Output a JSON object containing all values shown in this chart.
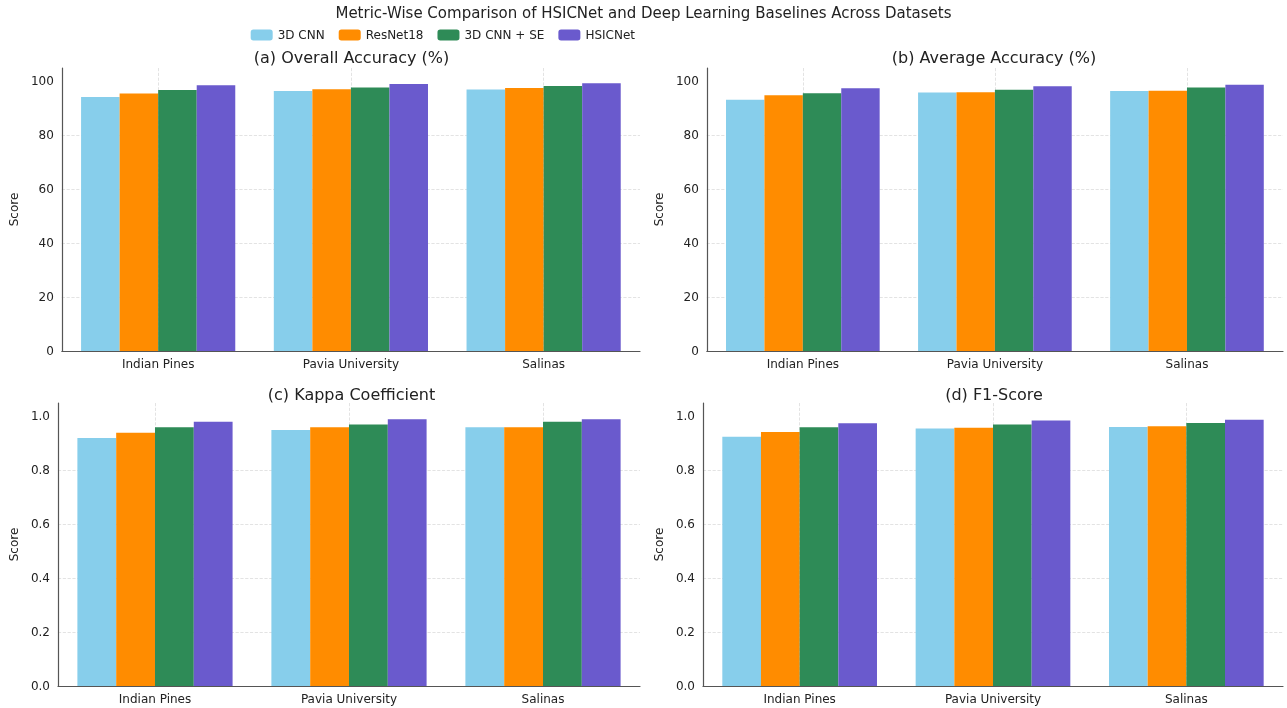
{
  "chart_data": [
    {
      "type": "bar",
      "title": "(a) Overall Accuracy (%)",
      "annotations": [
        "Metric-Wise Comparison of HSICNet and Deep Learning Baselines Across Datasets"
      ],
      "ylabel": "Score",
      "categories": [
        "Indian Pines",
        "Pavia University",
        "Salinas"
      ],
      "series": [
        {
          "name": "3D CNN",
          "color": "#87ceeb",
          "values": [
            94.2,
            96.5,
            97.0
          ]
        },
        {
          "name": "ResNet18",
          "color": "#ff8c00",
          "values": [
            95.5,
            97.1,
            97.6
          ]
        },
        {
          "name": "3D CNN + SE",
          "color": "#2e8b57",
          "values": [
            96.8,
            97.8,
            98.3
          ]
        },
        {
          "name": "HSICNet",
          "color": "#6a5acd",
          "values": [
            98.6,
            99.1,
            99.3
          ]
        }
      ],
      "ylim": [
        0,
        105
      ],
      "yticks": [
        0,
        20,
        40,
        60,
        80,
        100
      ],
      "grid": true,
      "legend": "top right"
    },
    {
      "type": "bar",
      "title": "(b) Average Accuracy (%)",
      "ylabel": "Score",
      "categories": [
        "Indian Pines",
        "Pavia University",
        "Salinas"
      ],
      "series": [
        {
          "color": "#87ceeb",
          "values": [
            93.2,
            95.9,
            96.5
          ]
        },
        {
          "color": "#ff8c00",
          "values": [
            94.9,
            96.0,
            96.6
          ]
        },
        {
          "color": "#2e8b57",
          "values": [
            95.6,
            96.9,
            97.8
          ]
        },
        {
          "color": "#6a5acd",
          "values": [
            97.5,
            98.2,
            98.8
          ]
        }
      ],
      "ylim": [
        0,
        105
      ],
      "yticks": [
        0,
        20,
        40,
        60,
        80,
        100
      ],
      "grid": true
    },
    {
      "type": "bar",
      "title": "(c) Kappa Coefficient",
      "ylabel": "Score",
      "categories": [
        "Indian Pines",
        "Pavia University",
        "Salinas"
      ],
      "series": [
        {
          "color": "#87ceeb",
          "values": [
            0.92,
            0.95,
            0.96
          ]
        },
        {
          "color": "#ff8c00",
          "values": [
            0.94,
            0.96,
            0.96
          ]
        },
        {
          "color": "#2e8b57",
          "values": [
            0.96,
            0.97,
            0.98
          ]
        },
        {
          "color": "#6a5acd",
          "values": [
            0.98,
            0.99,
            0.99
          ]
        }
      ],
      "ylim": [
        0,
        1.05
      ],
      "yticks": [
        {
          "value": 0,
          "label": "0.0"
        },
        {
          "value": 0.2,
          "label": "0.2"
        },
        {
          "value": 0.4,
          "label": "0.4"
        },
        {
          "value": 0.6,
          "label": "0.6"
        },
        {
          "value": 0.8,
          "label": "0.8"
        },
        {
          "value": 1,
          "label": "1.0"
        }
      ],
      "grid": true
    },
    {
      "type": "bar",
      "title": "(d) F1-Score",
      "ylabel": "Score",
      "categories": [
        "Indian Pines",
        "Pavia University",
        "Salinas"
      ],
      "series": [
        {
          "color": "#87ceeb",
          "values": [
            0.925,
            0.955,
            0.961
          ]
        },
        {
          "color": "#ff8c00",
          "values": [
            0.942,
            0.958,
            0.964
          ]
        },
        {
          "color": "#2e8b57",
          "values": [
            0.96,
            0.97,
            0.976
          ]
        },
        {
          "color": "#6a5acd",
          "values": [
            0.975,
            0.985,
            0.988
          ]
        }
      ],
      "ylim": [
        0,
        1.05
      ],
      "yticks": [
        {
          "value": 0,
          "label": "0.0"
        },
        {
          "value": 0.2,
          "label": "0.2"
        },
        {
          "value": 0.4,
          "label": "0.4"
        },
        {
          "value": 0.6,
          "label": "0.6"
        },
        {
          "value": 0.8,
          "label": "0.8"
        },
        {
          "value": 1,
          "label": "1.0"
        }
      ],
      "grid": true
    }
  ]
}
